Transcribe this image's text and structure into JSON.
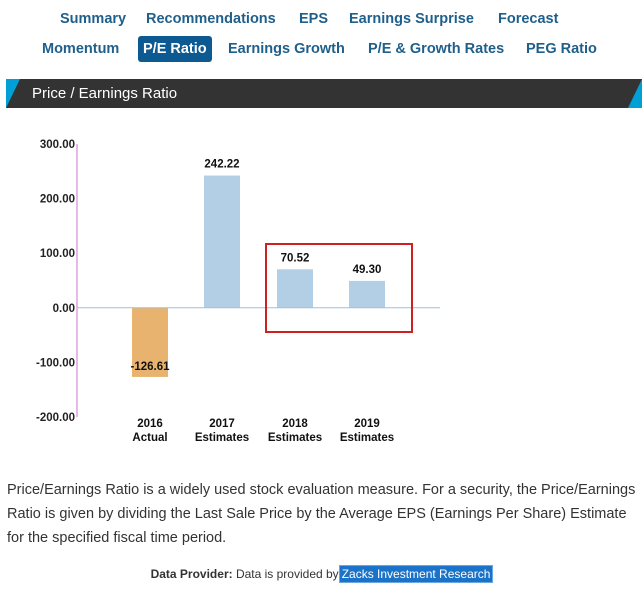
{
  "tabs": {
    "row1": [
      {
        "label": "Summary"
      },
      {
        "label": "Recommendations"
      },
      {
        "label": "EPS"
      },
      {
        "label": "Earnings Surprise"
      },
      {
        "label": "Forecast"
      }
    ],
    "row2": [
      {
        "label": "Momentum"
      },
      {
        "label": "P/E Ratio",
        "active": true
      },
      {
        "label": "Earnings Growth"
      },
      {
        "label": "P/E & Growth Rates"
      },
      {
        "label": "PEG Ratio"
      }
    ]
  },
  "section_title": "Price / Earnings Ratio",
  "chart_data": {
    "type": "bar",
    "categories": [
      [
        "2016",
        "Actual"
      ],
      [
        "2017",
        "Estimates"
      ],
      [
        "2018",
        "Estimates"
      ],
      [
        "2019",
        "Estimates"
      ]
    ],
    "values": [
      -126.61,
      242.22,
      70.52,
      49.3
    ],
    "value_labels": [
      "-126.61",
      "242.22",
      "70.52",
      "49.30"
    ],
    "ylim": [
      -200,
      300
    ],
    "yticks": [
      "300.00",
      "200.00",
      "100.00",
      "0.00",
      "-100.00",
      "-200.00"
    ],
    "ytick_values": [
      300,
      200,
      100,
      0,
      -100,
      -200
    ],
    "title": "",
    "xlabel": "",
    "ylabel": "",
    "colors": {
      "positive": "#b3cfe6",
      "negative": "#e8b36f",
      "highlight_box": "#cc2222",
      "axis": "#d070d0",
      "zero_line": "#9cc4dd"
    },
    "highlight": [
      2,
      3
    ]
  },
  "description": "Price/Earnings Ratio is a widely used stock evaluation measure. For a security, the Price/Earnings Ratio is given by dividing the Last Sale Price by the Average EPS (Earnings Per Share) Estimate for the specified fiscal time period.",
  "provider": {
    "label": "Data Provider:",
    "text": "Data is provided by",
    "link": "Zacks Investment Research"
  }
}
